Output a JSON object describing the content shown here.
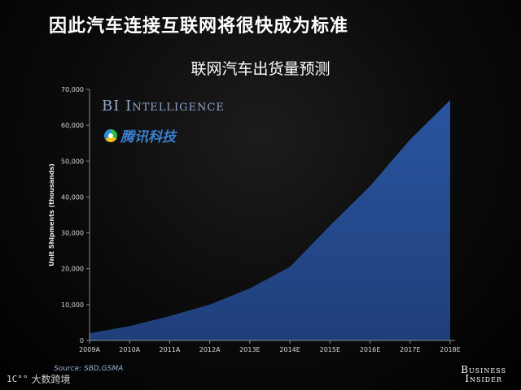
{
  "headline": "因此汽车连接互联网将很快成为标准",
  "brand": {
    "bi": "BI",
    "intelligence": "Intelligence",
    "tencent": "腾讯科技"
  },
  "source": "Source: SBD,GSMA",
  "business_insider": {
    "line1": "Business",
    "line2": "Insider"
  },
  "watermark": {
    "mark": "1C°°",
    "text": "大数跨境"
  },
  "colors": {
    "area": "#1f3f7a",
    "area_edge": "#2a55a0",
    "background": "#000000"
  },
  "chart_data": {
    "type": "area",
    "title": "联网汽车出货量预测",
    "xlabel": "",
    "ylabel": "Unit Shipments (thousands)",
    "categories": [
      "2009A",
      "2010A",
      "2011A",
      "2012A",
      "2013E",
      "2014E",
      "2015E",
      "2016E",
      "2017E",
      "2018E"
    ],
    "values": [
      2000,
      4000,
      6800,
      10000,
      14500,
      20500,
      32000,
      43000,
      56000,
      67000
    ],
    "yticks": [
      "0",
      "10,000",
      "20,000",
      "30,000",
      "40,000",
      "50,000",
      "60,000",
      "70,000"
    ],
    "ylim": [
      0,
      70000
    ],
    "grid": false,
    "legend": "none"
  }
}
